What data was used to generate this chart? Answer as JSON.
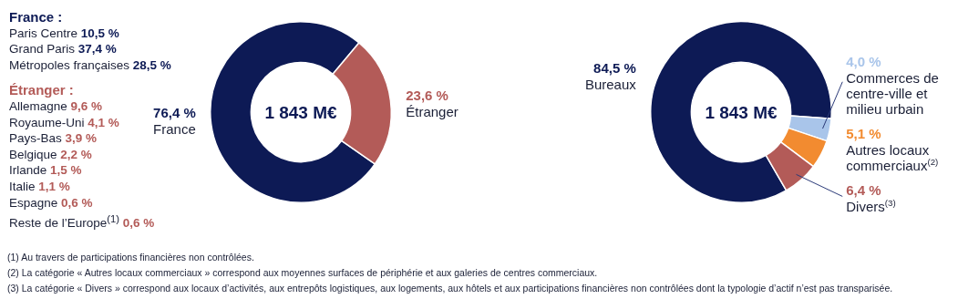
{
  "chart_data": [
    {
      "type": "donut",
      "categories": [
        "France",
        "Étranger"
      ],
      "values": [
        76.4,
        23.6
      ],
      "colors": [
        "#0d1a55",
        "#b35b58"
      ],
      "value_labels": [
        "76,4 %",
        "23,6 %"
      ],
      "annotations": [
        "1 843 M€",
        "France :",
        "Paris Centre 10,5 %",
        "Grand Paris 37,4 %",
        "Métropoles françaises 28,5 %",
        "Étranger :",
        "Allemagne 9,6 %",
        "Royaume-Uni 4,1 %",
        "Pays-Bas 3,9 %",
        "Belgique 2,2 %",
        "Irlande 1,5 %",
        "Italie 1,1 %",
        "Espagne 0,6 %",
        "Reste de l’Europe$^{(1)}$ 0,6 %"
      ]
    },
    {
      "type": "donut",
      "categories": [
        "Bureaux",
        "Commerces de centre-ville et milieu urbain",
        "Autres locaux commerciaux$^{(2)}$",
        "Divers$^{(3)}$"
      ],
      "values": [
        84.5,
        4.0,
        5.1,
        6.4
      ],
      "colors": [
        "#0d1a55",
        "#a9c5ea",
        "#f28b30",
        "#b35b58"
      ],
      "value_labels": [
        "84,5 %",
        "4,0 %",
        "5,1 %",
        "6,4 %"
      ],
      "annotations": [
        "1 843 M€",
        "(1) Au travers de participations financières non contrôlées.",
        "(2) La catégorie « Autres locaux commerciaux » correspond aux moyennes surfaces de périphérie et aux galeries de centres commerciaux.",
        "(3) La catégorie « Divers » correspond aux locaux d’activités, aux entrepôts logistiques, aux logements, aux hôtels et aux participations financières non contrôlées dont la typologie d’actif n’est pas transparisée."
      ]
    }
  ]
}
